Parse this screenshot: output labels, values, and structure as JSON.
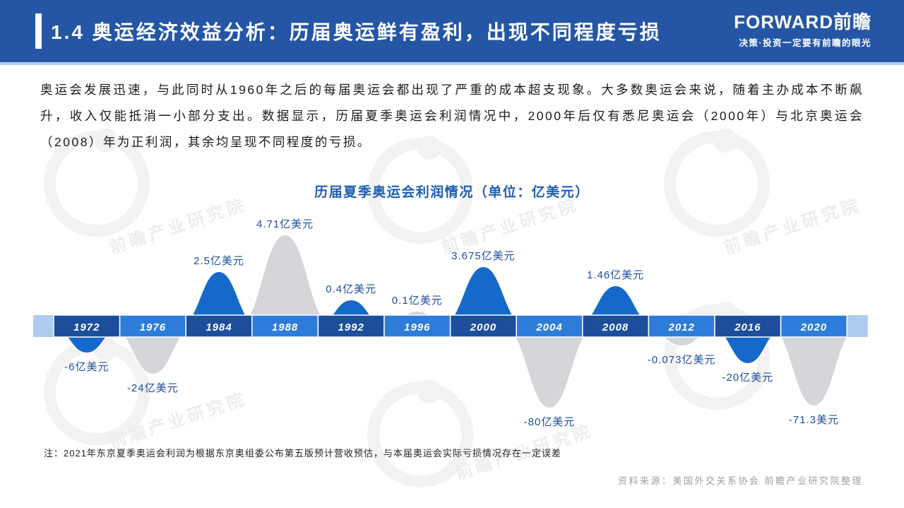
{
  "header": {
    "title": "1.4 奥运经济效益分析：历届奥运鲜有盈利，出现不同程度亏损"
  },
  "logo": {
    "name": "FORWARD前瞻",
    "tagline": "决策·投资一定要有前瞻的眼光"
  },
  "paragraph": {
    "text": "奥运会发展迅速，与此同时从1960年之后的每届奥运会都出现了严重的成本超支现象。大多数奥运会来说，随着主办成本不断飙升，收入仅能抵消一小部分支出。数据显示，历届夏季奥运会利润情况中，2000年后仅有悉尼奥运会（2000年）与北京奥运会（2008）年为正利润，其余均呈现不同程度的亏损。"
  },
  "chart_data": {
    "type": "area",
    "title": "历届夏季奥运会利润情况（单位：亿美元）",
    "unit": "亿美元",
    "legend_position": "none",
    "grid": false,
    "categories": [
      "1972",
      "1976",
      "1984",
      "1988",
      "1992",
      "1996",
      "2000",
      "2004",
      "2008",
      "2012",
      "2016",
      "2020"
    ],
    "values": [
      -6,
      -24,
      2.5,
      4.71,
      0.4,
      0.1,
      3.675,
      -80,
      1.46,
      -0.073,
      -20,
      -71.3
    ],
    "points": [
      {
        "year": "1972",
        "value": -6,
        "label": "-6亿美元",
        "color": "blue",
        "amp": -38,
        "halfWidth": 52
      },
      {
        "year": "1976",
        "value": -24,
        "label": "-24亿美元",
        "color": "gray",
        "amp": -68,
        "halfWidth": 62
      },
      {
        "year": "1984",
        "value": 2.5,
        "label": "2.5亿美元",
        "color": "blue",
        "amp": 78,
        "halfWidth": 58
      },
      {
        "year": "1988",
        "value": 4.71,
        "label": "4.71亿美元",
        "color": "gray",
        "amp": 130,
        "halfWidth": 70
      },
      {
        "year": "1992",
        "value": 0.4,
        "label": "0.4亿美元",
        "color": "blue",
        "amp": 38,
        "halfWidth": 52
      },
      {
        "year": "1996",
        "value": 0.1,
        "label": "0.1亿美元",
        "color": "gray",
        "amp": 22,
        "halfWidth": 48
      },
      {
        "year": "2000",
        "value": 3.675,
        "label": "3.675亿美元",
        "color": "blue",
        "amp": 85,
        "halfWidth": 62
      },
      {
        "year": "2004",
        "value": -80,
        "label": "-80亿美元",
        "color": "gray",
        "amp": -116,
        "halfWidth": 68
      },
      {
        "year": "2008",
        "value": 1.46,
        "label": "1.46亿美元",
        "color": "blue",
        "amp": 58,
        "halfWidth": 58
      },
      {
        "year": "2012",
        "value": -0.073,
        "label": "-0.073亿美元",
        "color": "gray",
        "amp": -28,
        "halfWidth": 55
      },
      {
        "year": "2016",
        "value": -20,
        "label": "-20亿美元",
        "color": "blue",
        "amp": -53,
        "halfWidth": 55
      },
      {
        "year": "2020",
        "value": -71.3,
        "label": "-71.3美元",
        "color": "gray",
        "amp": -113,
        "halfWidth": 66
      }
    ],
    "colors": {
      "wave_blue": "#1569CB",
      "wave_gray": "#D4D6D9",
      "bar_dark": "#1C4E9C",
      "bar_medium": "#2E7CD9",
      "bar_cap_light": "#AECBF0",
      "value_label": "#1F4E9C",
      "year_text": "#FFFFFF"
    }
  },
  "note": {
    "text": "注：2021年东京夏季奥运会利润为根据东京奥组委公布第五版预计营收预估，与本届奥运会实际亏损情况存在一定误差"
  },
  "source": {
    "text": "资料来源：美国外交关系协会  前瞻产业研究院整理"
  },
  "watermark": {
    "text": "前瞻产业研究院"
  }
}
